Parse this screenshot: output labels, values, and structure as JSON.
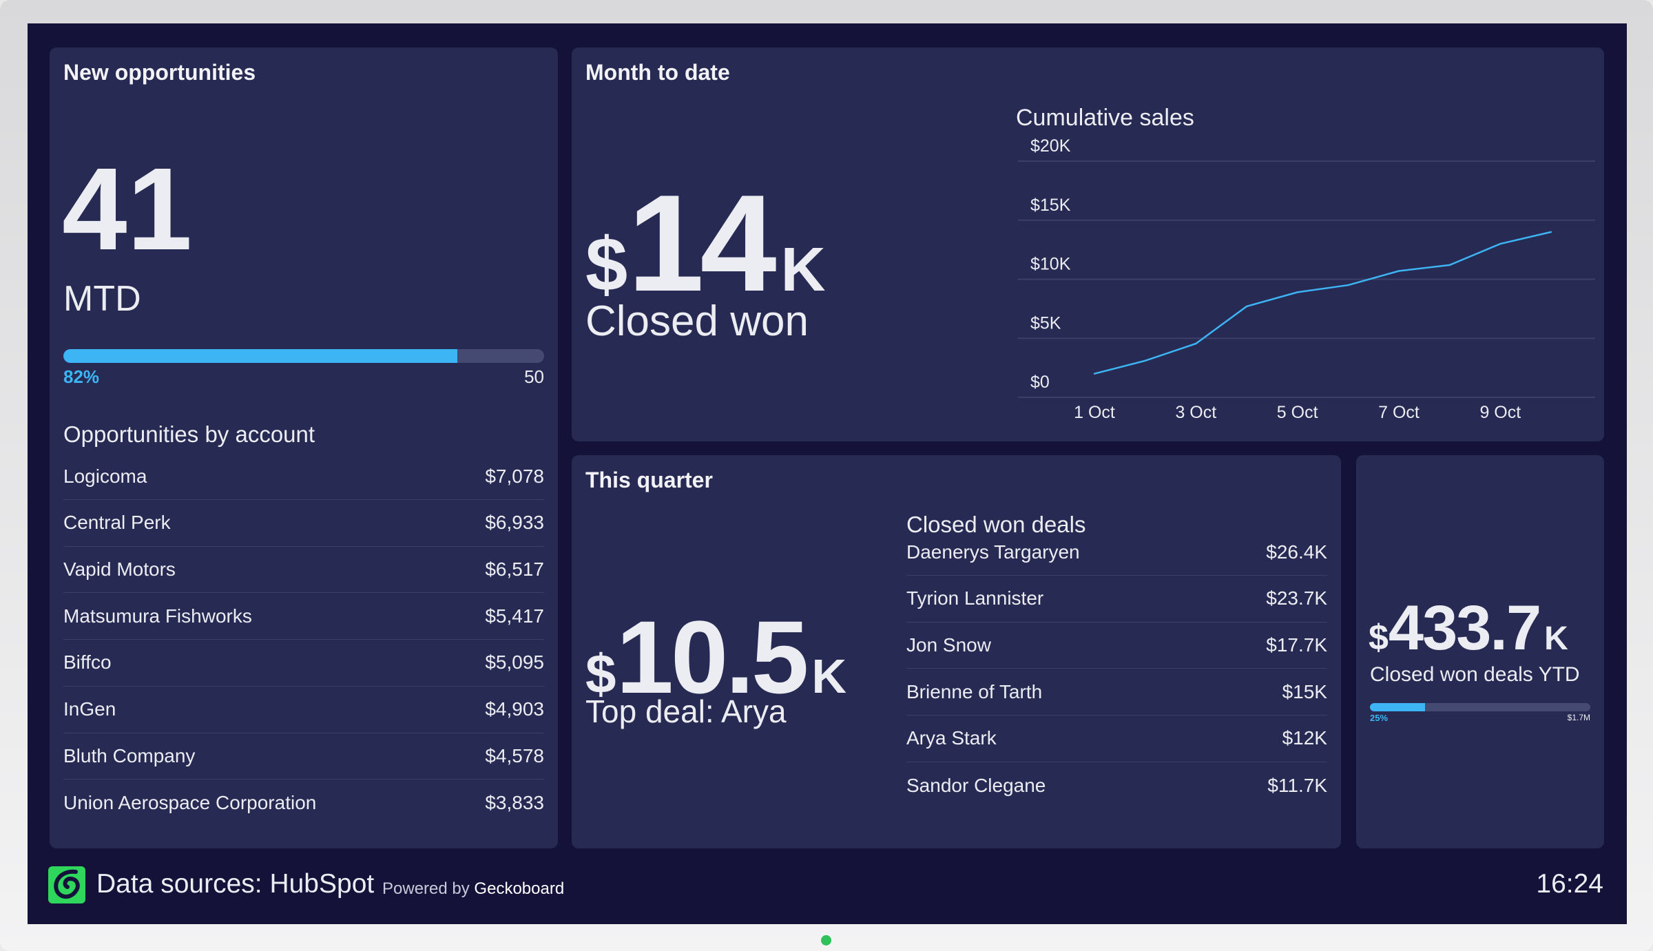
{
  "new_opportunities": {
    "title": "New opportunities",
    "value": "41",
    "label": "MTD",
    "progress_percent": 82,
    "progress_label": "82%",
    "goal": "50",
    "list_title": "Opportunities by account",
    "accounts": [
      {
        "name": "Logicoma",
        "value": "$7,078"
      },
      {
        "name": "Central Perk",
        "value": "$6,933"
      },
      {
        "name": "Vapid Motors",
        "value": "$6,517"
      },
      {
        "name": "Matsumura Fishworks",
        "value": "$5,417"
      },
      {
        "name": "Biffco",
        "value": "$5,095"
      },
      {
        "name": "InGen",
        "value": "$4,903"
      },
      {
        "name": "Bluth Company",
        "value": "$4,578"
      },
      {
        "name": "Union Aerospace Corporation",
        "value": "$3,833"
      }
    ]
  },
  "month_to_date": {
    "title": "Month to date",
    "prefix": "$",
    "value": "14",
    "suffix": "K",
    "label": "Closed won"
  },
  "chart_data": {
    "type": "line",
    "title": "Cumulative sales",
    "x": [
      "1 Oct",
      "2 Oct",
      "3 Oct",
      "4 Oct",
      "5 Oct",
      "6 Oct",
      "7 Oct",
      "8 Oct",
      "9 Oct",
      "10 Oct"
    ],
    "series": [
      {
        "values": [
          2000,
          3100,
          4550,
          7700,
          8900,
          9500,
          10700,
          11200,
          13000,
          14000
        ]
      }
    ],
    "ylim": [
      0,
      20000
    ],
    "yticks": [
      "$0",
      "$5K",
      "$10K",
      "$15K",
      "$20K"
    ],
    "xticks": [
      "1 Oct",
      "3 Oct",
      "5 Oct",
      "7 Oct",
      "9 Oct"
    ],
    "grid": true,
    "color": "#3db4f4"
  },
  "this_quarter": {
    "title": "This quarter",
    "prefix": "$",
    "value": "10.5",
    "suffix": "K",
    "label": "Top deal: Arya",
    "list_title": "Closed won deals",
    "deals": [
      {
        "name": "Daenerys Targaryen",
        "value": "$26.4K"
      },
      {
        "name": "Tyrion Lannister",
        "value": "$23.7K"
      },
      {
        "name": "Jon Snow",
        "value": "$17.7K"
      },
      {
        "name": "Brienne of Tarth",
        "value": "$15K"
      },
      {
        "name": "Arya Stark",
        "value": "$12K"
      },
      {
        "name": "Sandor Clegane",
        "value": "$11.7K"
      }
    ]
  },
  "ytd": {
    "prefix": "$",
    "value": "433.7",
    "suffix": "K",
    "label": "Closed won deals YTD",
    "progress_percent": 25,
    "progress_label": "25%",
    "goal": "$1.7M"
  },
  "footer": {
    "sources": "Data sources: HubSpot",
    "powered": "Powered by",
    "brand": "Geckoboard",
    "time": "16:24",
    "logo_icon": "geckoboard-logo"
  },
  "colors": {
    "accent": "#3db4f4",
    "panel": "#272a52",
    "background": "#15123a",
    "logo": "#2fd65c"
  }
}
